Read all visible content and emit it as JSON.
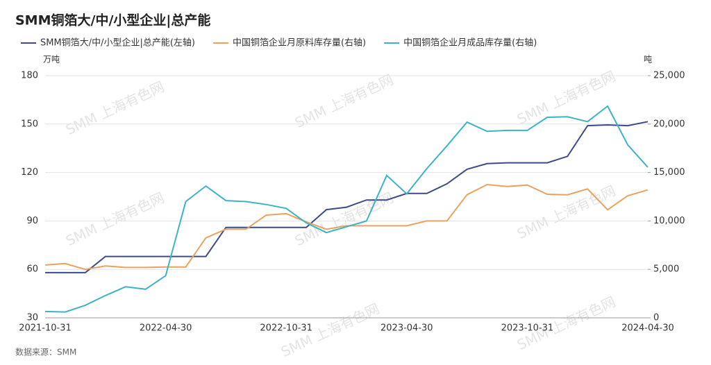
{
  "chart_data": {
    "type": "line",
    "title": "SMM铜箔大/中/小型企业|总产能",
    "y_unit": "万吨",
    "y2_unit": "吨",
    "source": "数据来源：SMM",
    "watermark": "SMM 上海有色网",
    "categories": [
      "2021-10-31",
      null,
      null,
      null,
      null,
      null,
      "2022-04-30",
      null,
      null,
      null,
      null,
      null,
      "2022-10-31",
      null,
      null,
      null,
      null,
      null,
      "2023-04-30",
      null,
      null,
      null,
      null,
      null,
      "2023-10-31",
      null,
      null,
      null,
      null,
      null,
      "2024-04-30"
    ],
    "series": [
      {
        "name": "SMM铜箔大/中/小型企业|总产能(左轴)",
        "color": "#3d4a8a",
        "axis": "y",
        "values": [
          58,
          58,
          58,
          68,
          68,
          68,
          68,
          68,
          68,
          86,
          86,
          86,
          86,
          86,
          97,
          98.5,
          103,
          103,
          107,
          107,
          113,
          122,
          125.5,
          126,
          126,
          126,
          130,
          149,
          149.5,
          149,
          151.5
        ]
      },
      {
        "name": "中国铜箔企业月原料库存量(右轴)",
        "color": "#e9a25f",
        "axis": "y2",
        "values": [
          5450,
          5600,
          5000,
          5350,
          5200,
          5200,
          5250,
          5250,
          8250,
          9150,
          9150,
          10600,
          10750,
          9900,
          9150,
          9500,
          9500,
          9500,
          9500,
          10000,
          10000,
          12700,
          13750,
          13550,
          13700,
          12750,
          12700,
          13300,
          11150,
          12600,
          13200
        ]
      },
      {
        "name": "中国铜箔企业月成品库存量(右轴)",
        "color": "#3cb3c3",
        "axis": "y2",
        "values": [
          650,
          600,
          1300,
          2300,
          3200,
          2950,
          4350,
          12000,
          13600,
          12100,
          12000,
          11700,
          11300,
          9800,
          8800,
          9400,
          10000,
          14700,
          12800,
          15400,
          17750,
          20200,
          19250,
          19350,
          19350,
          20700,
          20750,
          20250,
          21850,
          17850,
          15550
        ]
      }
    ],
    "ylim": [
      30,
      180
    ],
    "yticks": [
      30,
      60,
      90,
      120,
      150,
      180
    ],
    "y2lim": [
      0,
      25000
    ],
    "y2ticks": [
      0,
      {
        "value": 5000,
        "label": "5,000"
      },
      {
        "value": 10000,
        "label": "10,000"
      },
      {
        "value": 15000,
        "label": "15,000"
      },
      {
        "value": 20000,
        "label": "20,000"
      },
      {
        "value": 25000,
        "label": "25,000"
      }
    ],
    "grid": true
  }
}
